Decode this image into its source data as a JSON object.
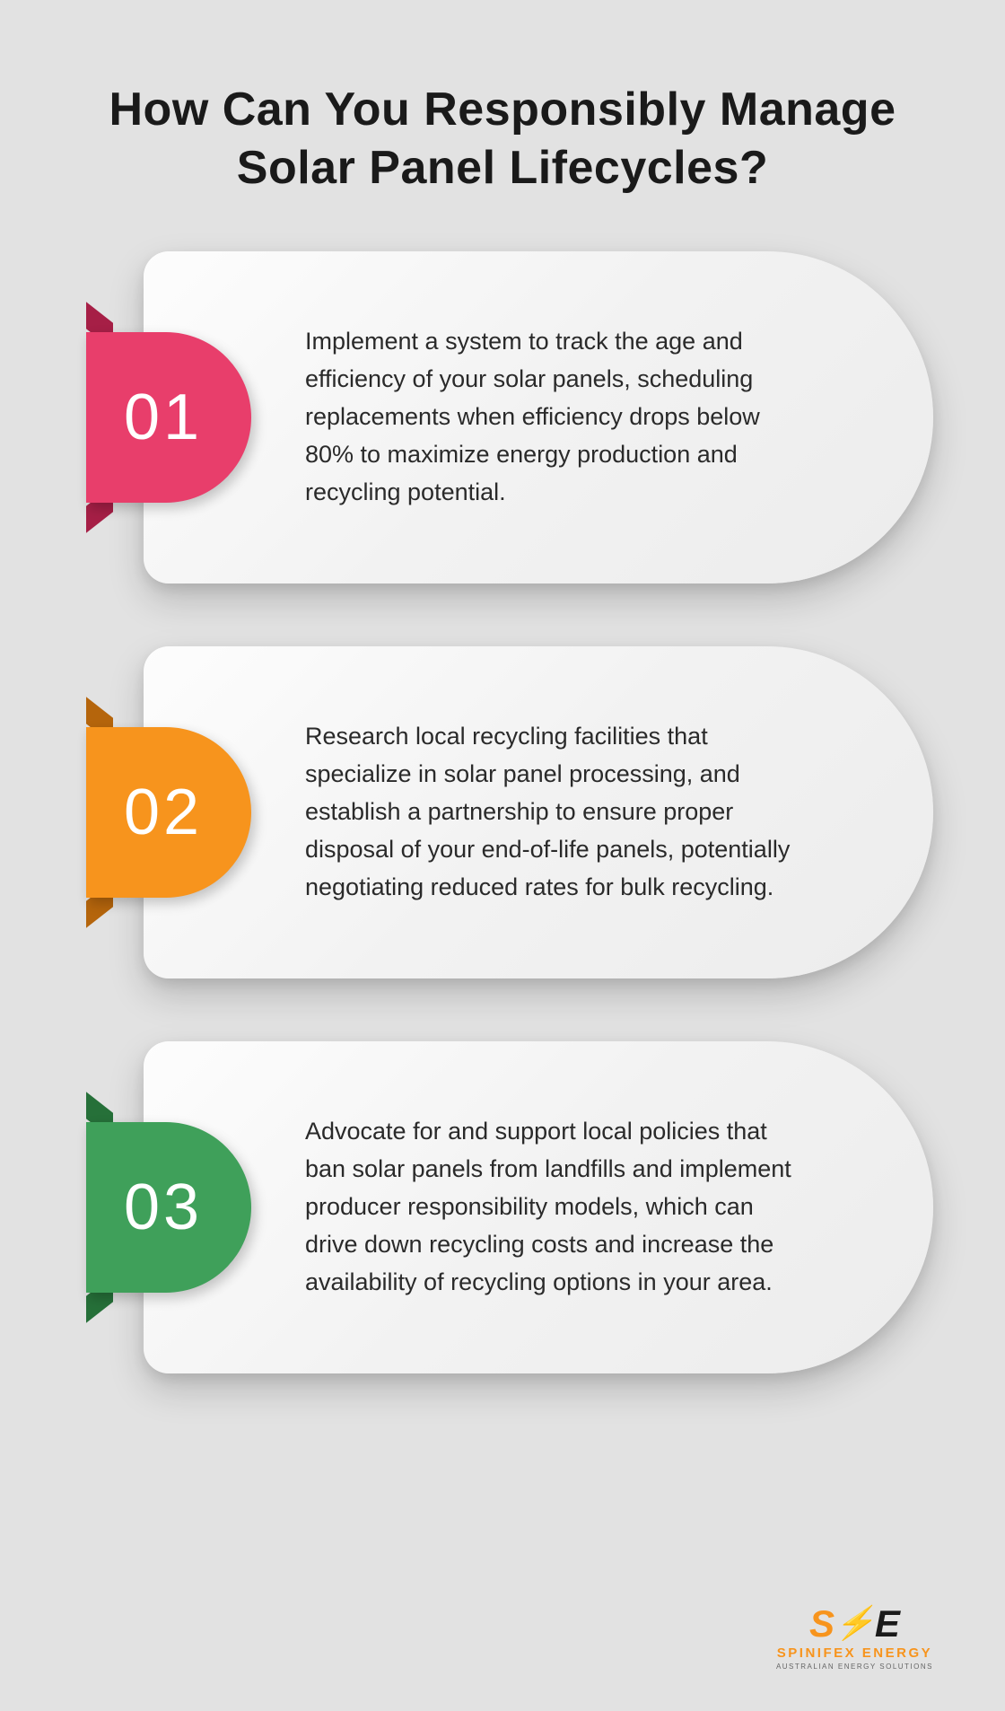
{
  "title": "How Can You Responsibly Manage Solar Panel Lifecycles?",
  "title_fontsize": 52,
  "title_color": "#1a1a1a",
  "background_color": "#e2e2e2",
  "card_bg_gradient": [
    "#fdfdfd",
    "#f2f2f2",
    "#ececec"
  ],
  "card_text_fontsize": 27,
  "card_text_color": "#2a2a2a",
  "badge_num_fontsize": 72,
  "badge_num_color": "#ffffff",
  "items": [
    {
      "num": "01",
      "badge_color": "#e83e6b",
      "fold_color": "#a61f46",
      "text": "Implement a system to track the age and efficiency of your solar panels, scheduling replacements when efficiency drops below 80% to maximize energy production and recycling potential."
    },
    {
      "num": "02",
      "badge_color": "#f7941d",
      "fold_color": "#b5650c",
      "text": "Research local recycling facilities that specialize in solar panel processing, and establish a partnership to ensure proper disposal of your end-of-life panels, potentially negotiating reduced rates for bulk recycling."
    },
    {
      "num": "03",
      "badge_color": "#3fa05a",
      "fold_color": "#267039",
      "text": "Advocate for and support local policies that ban solar panels from landfills and implement producer responsibility models, which can drive down recycling costs and increase the availability of recycling options in your area."
    }
  ],
  "logo": {
    "name": "SPINIFEX ENERGY",
    "tagline": "AUSTRALIAN ENERGY SOLUTIONS",
    "accent_color": "#f7941d",
    "dark_color": "#1a1a1a"
  }
}
